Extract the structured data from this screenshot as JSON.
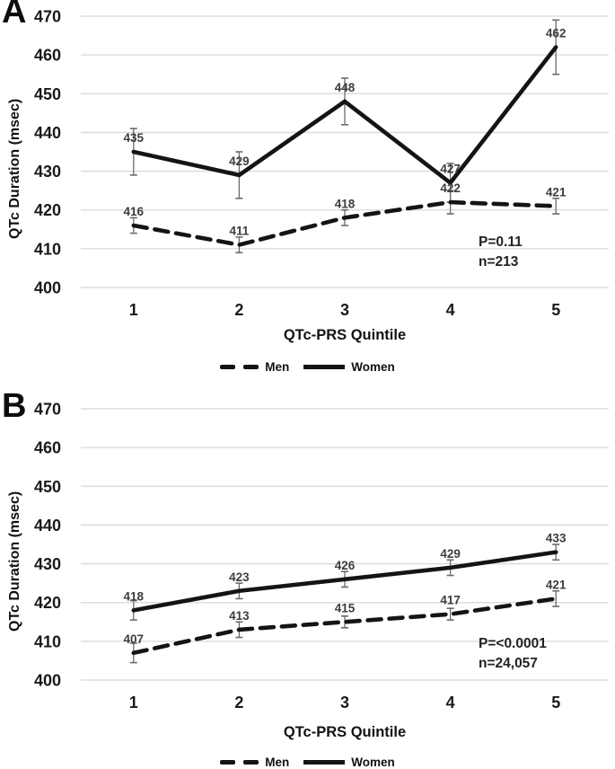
{
  "colors": {
    "series_line": "#141414",
    "gridline": "#d8d8d8",
    "error_bar": "#6b6b6b",
    "point_label": "#3d3d3d"
  },
  "chart_data": [
    {
      "panel": "A",
      "type": "line",
      "title": "",
      "xlabel": "QTc-PRS Quintile",
      "ylabel": "QTc Duration (msec)",
      "categories": [
        "1",
        "2",
        "3",
        "4",
        "5"
      ],
      "yticks": [
        400,
        410,
        420,
        430,
        440,
        450,
        460,
        470
      ],
      "ylim": [
        400,
        470
      ],
      "grid": true,
      "legend": [
        "Men",
        "Women"
      ],
      "legend_position": "bottom",
      "annotation": {
        "p_value": "P=0.11",
        "n_label": "n=213"
      },
      "series": [
        {
          "name": "Women",
          "style": "solid",
          "values": [
            435,
            429,
            448,
            427,
            462
          ],
          "errors": [
            6,
            6,
            6,
            5,
            7
          ]
        },
        {
          "name": "Men",
          "style": "dashed",
          "values": [
            416,
            411,
            418,
            422,
            421
          ],
          "errors": [
            2,
            2,
            2,
            3,
            2
          ]
        }
      ]
    },
    {
      "panel": "B",
      "type": "line",
      "title": "",
      "xlabel": "QTc-PRS Quintile",
      "ylabel": "QTc Duration (msec)",
      "categories": [
        "1",
        "2",
        "3",
        "4",
        "5"
      ],
      "yticks": [
        400,
        410,
        420,
        430,
        440,
        450,
        460,
        470
      ],
      "ylim": [
        400,
        470
      ],
      "grid": true,
      "legend": [
        "Men",
        "Women"
      ],
      "legend_position": "bottom",
      "annotation": {
        "p_value": "P=<0.0001",
        "n_label": "n=24,057"
      },
      "series": [
        {
          "name": "Women",
          "style": "solid",
          "values": [
            418,
            423,
            426,
            429,
            433
          ],
          "errors": [
            2.5,
            2,
            2,
            2,
            2
          ]
        },
        {
          "name": "Men",
          "style": "dashed",
          "values": [
            407,
            413,
            415,
            417,
            421
          ],
          "errors": [
            2.5,
            2,
            1.5,
            1.5,
            2
          ]
        }
      ]
    }
  ]
}
